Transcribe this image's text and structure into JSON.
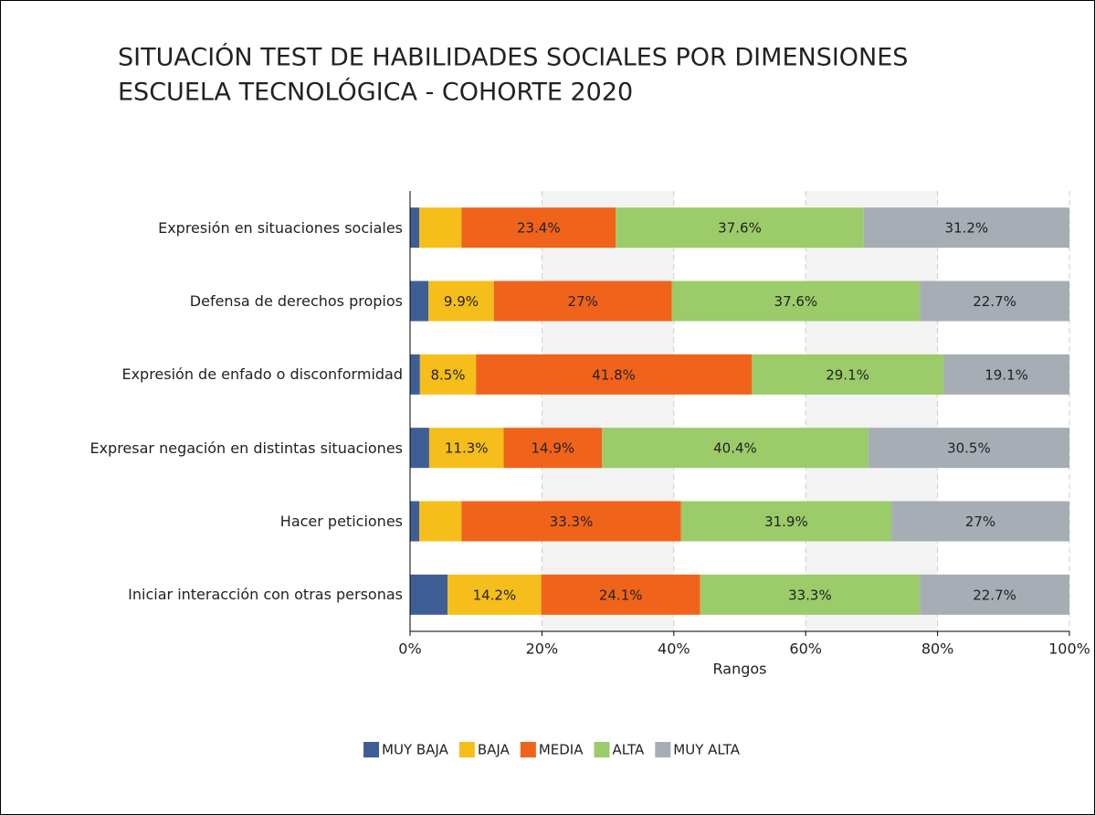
{
  "chart_data": {
    "type": "stacked-bar-horizontal",
    "title": "SITUACIÓN TEST DE HABILIDADES SOCIALES POR DIMENSIONES",
    "subtitle": "ESCUELA TECNOLÓGICA - COHORTE 2020",
    "x_label": "Rangos",
    "categories": [
      "Expresión en situaciones sociales",
      "Defensa de derechos propios",
      "Expresión de enfado o disconformidad",
      "Expresar negación en distintas situaciones",
      "Hacer peticiones",
      "Iniciar interacción con otras personas"
    ],
    "series": [
      {
        "name": "MUY BAJA",
        "color": "#3e5f96",
        "values": [
          1.4,
          2.8,
          1.5,
          2.9,
          1.4,
          5.7
        ],
        "value_labels": [
          null,
          null,
          null,
          null,
          null,
          null
        ]
      },
      {
        "name": "BAJA",
        "color": "#f5be1a",
        "values": [
          6.4,
          9.9,
          8.5,
          11.3,
          6.4,
          14.2
        ],
        "value_labels": [
          null,
          "9.9%",
          "8.5%",
          "11.3%",
          null,
          "14.2%"
        ]
      },
      {
        "name": "MEDIA",
        "color": "#f0631a",
        "values": [
          23.4,
          27,
          41.8,
          14.9,
          33.3,
          24.1
        ],
        "value_labels": [
          "23.4%",
          "27%",
          "41.8%",
          "14.9%",
          "33.3%",
          "24.1%"
        ]
      },
      {
        "name": "ALTA",
        "color": "#9ccb6a",
        "values": [
          37.6,
          37.6,
          29.1,
          40.4,
          31.9,
          33.3
        ],
        "value_labels": [
          "37.6%",
          "37.6%",
          "29.1%",
          "40.4%",
          "31.9%",
          "33.3%"
        ]
      },
      {
        "name": "MUY ALTA",
        "color": "#a6adb5",
        "values": [
          31.2,
          22.7,
          19.1,
          30.5,
          27,
          22.7
        ],
        "value_labels": [
          "31.2%",
          "22.7%",
          "19.1%",
          "30.5%",
          "27%",
          "22.7%"
        ]
      }
    ],
    "xlim": [
      0,
      100
    ],
    "xticks": [
      {
        "value": 0,
        "label": "0%"
      },
      {
        "value": 20,
        "label": "20%"
      },
      {
        "value": 40,
        "label": "40%"
      },
      {
        "value": 60,
        "label": "60%"
      },
      {
        "value": 80,
        "label": "80%"
      },
      {
        "value": 100,
        "label": "100%"
      }
    ],
    "grid": true,
    "legend": "bottom"
  }
}
